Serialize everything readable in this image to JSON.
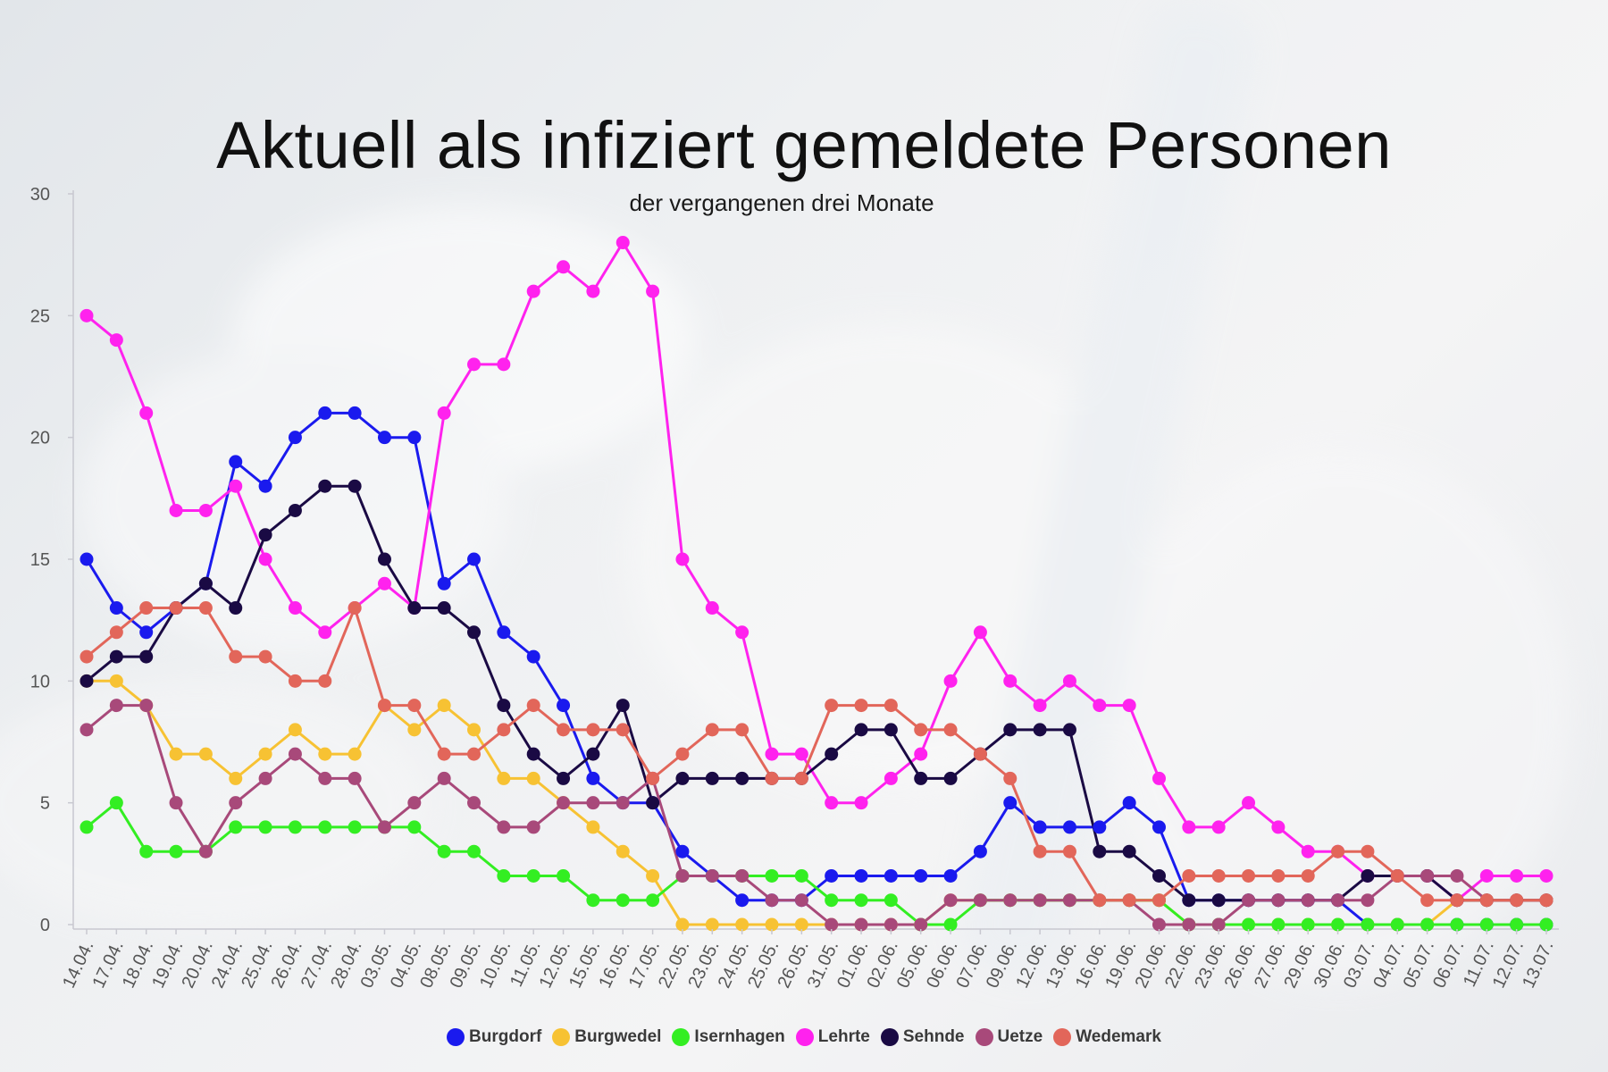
{
  "chart_data": {
    "type": "line",
    "title": "Aktuell als infiziert gemeldete Personen",
    "subtitle": "der vergangenen drei Monate",
    "xlabel": "",
    "ylabel": "",
    "ylim": [
      0,
      30
    ],
    "yticks": [
      0,
      5,
      10,
      15,
      20,
      25,
      30
    ],
    "grid": false,
    "legend": "bottom-center",
    "categories": [
      "14.04.",
      "17.04.",
      "18.04.",
      "19.04.",
      "20.04.",
      "24.04.",
      "25.04.",
      "26.04.",
      "27.04.",
      "28.04.",
      "03.05.",
      "04.05.",
      "08.05.",
      "09.05.",
      "10.05.",
      "11.05.",
      "12.05.",
      "15.05.",
      "16.05.",
      "17.05.",
      "22.05.",
      "23.05.",
      "24.05.",
      "25.05.",
      "26.05.",
      "31.05.",
      "01.06.",
      "02.06.",
      "05.06.",
      "06.06.",
      "07.06.",
      "09.06.",
      "12.06.",
      "13.06.",
      "16.06.",
      "19.06.",
      "20.06.",
      "22.06.",
      "23.06.",
      "26.06.",
      "27.06.",
      "29.06.",
      "30.06.",
      "03.07.",
      "04.07.",
      "05.07.",
      "06.07.",
      "11.07.",
      "12.07.",
      "13.07."
    ],
    "series": [
      {
        "name": "Burgdorf",
        "color": "#1a1aee",
        "values": [
          15,
          13,
          12,
          13,
          14,
          19,
          18,
          20,
          21,
          21,
          20,
          20,
          14,
          15,
          12,
          11,
          9,
          6,
          5,
          5,
          3,
          2,
          1,
          1,
          1,
          2,
          2,
          2,
          2,
          2,
          3,
          5,
          4,
          4,
          4,
          5,
          4,
          1,
          1,
          1,
          1,
          1,
          1,
          0,
          0,
          0,
          0,
          0,
          0,
          0
        ]
      },
      {
        "name": "Burgwedel",
        "color": "#f7c233",
        "values": [
          10,
          10,
          9,
          7,
          7,
          6,
          7,
          8,
          7,
          7,
          9,
          8,
          9,
          8,
          6,
          6,
          5,
          4,
          3,
          2,
          0,
          0,
          0,
          0,
          0,
          0,
          0,
          0,
          0,
          1,
          1,
          1,
          1,
          1,
          1,
          1,
          1,
          0,
          0,
          0,
          0,
          0,
          0,
          0,
          0,
          0,
          1,
          1,
          1,
          1
        ]
      },
      {
        "name": "Isernhagen",
        "color": "#33ee22",
        "values": [
          4,
          5,
          3,
          3,
          3,
          4,
          4,
          4,
          4,
          4,
          4,
          4,
          3,
          3,
          2,
          2,
          2,
          1,
          1,
          1,
          2,
          2,
          2,
          2,
          2,
          1,
          1,
          1,
          0,
          0,
          1,
          1,
          1,
          1,
          1,
          1,
          1,
          0,
          0,
          0,
          0,
          0,
          0,
          0,
          0,
          0,
          0,
          0,
          0,
          0
        ]
      },
      {
        "name": "Lehrte",
        "color": "#ff22ee",
        "values": [
          25,
          24,
          21,
          17,
          17,
          18,
          15,
          13,
          12,
          13,
          14,
          13,
          21,
          23,
          23,
          26,
          27,
          26,
          28,
          26,
          15,
          13,
          12,
          7,
          7,
          5,
          5,
          6,
          7,
          10,
          12,
          10,
          9,
          10,
          9,
          9,
          6,
          4,
          4,
          5,
          4,
          3,
          3,
          2,
          2,
          2,
          1,
          2,
          2,
          2
        ]
      },
      {
        "name": "Sehnde",
        "color": "#1a0a44",
        "values": [
          10,
          11,
          11,
          13,
          14,
          13,
          16,
          17,
          18,
          18,
          15,
          13,
          13,
          12,
          9,
          7,
          6,
          7,
          9,
          5,
          6,
          6,
          6,
          6,
          6,
          7,
          8,
          8,
          6,
          6,
          7,
          8,
          8,
          8,
          3,
          3,
          2,
          1,
          1,
          1,
          1,
          1,
          1,
          2,
          2,
          2,
          1,
          1,
          1,
          1
        ]
      },
      {
        "name": "Uetze",
        "color": "#a8497a",
        "values": [
          8,
          9,
          9,
          5,
          3,
          5,
          6,
          7,
          6,
          6,
          4,
          5,
          6,
          5,
          4,
          4,
          5,
          5,
          5,
          6,
          2,
          2,
          2,
          1,
          1,
          0,
          0,
          0,
          0,
          1,
          1,
          1,
          1,
          1,
          1,
          1,
          0,
          0,
          0,
          1,
          1,
          1,
          1,
          1,
          2,
          2,
          2,
          1,
          1,
          1
        ]
      },
      {
        "name": "Wedemark",
        "color": "#e2665a",
        "values": [
          11,
          12,
          13,
          13,
          13,
          11,
          11,
          10,
          10,
          13,
          9,
          9,
          7,
          7,
          8,
          9,
          8,
          8,
          8,
          6,
          7,
          8,
          8,
          6,
          6,
          9,
          9,
          9,
          8,
          8,
          7,
          6,
          3,
          3,
          1,
          1,
          1,
          2,
          2,
          2,
          2,
          2,
          3,
          3,
          2,
          1,
          1,
          1,
          1,
          1
        ]
      }
    ]
  }
}
